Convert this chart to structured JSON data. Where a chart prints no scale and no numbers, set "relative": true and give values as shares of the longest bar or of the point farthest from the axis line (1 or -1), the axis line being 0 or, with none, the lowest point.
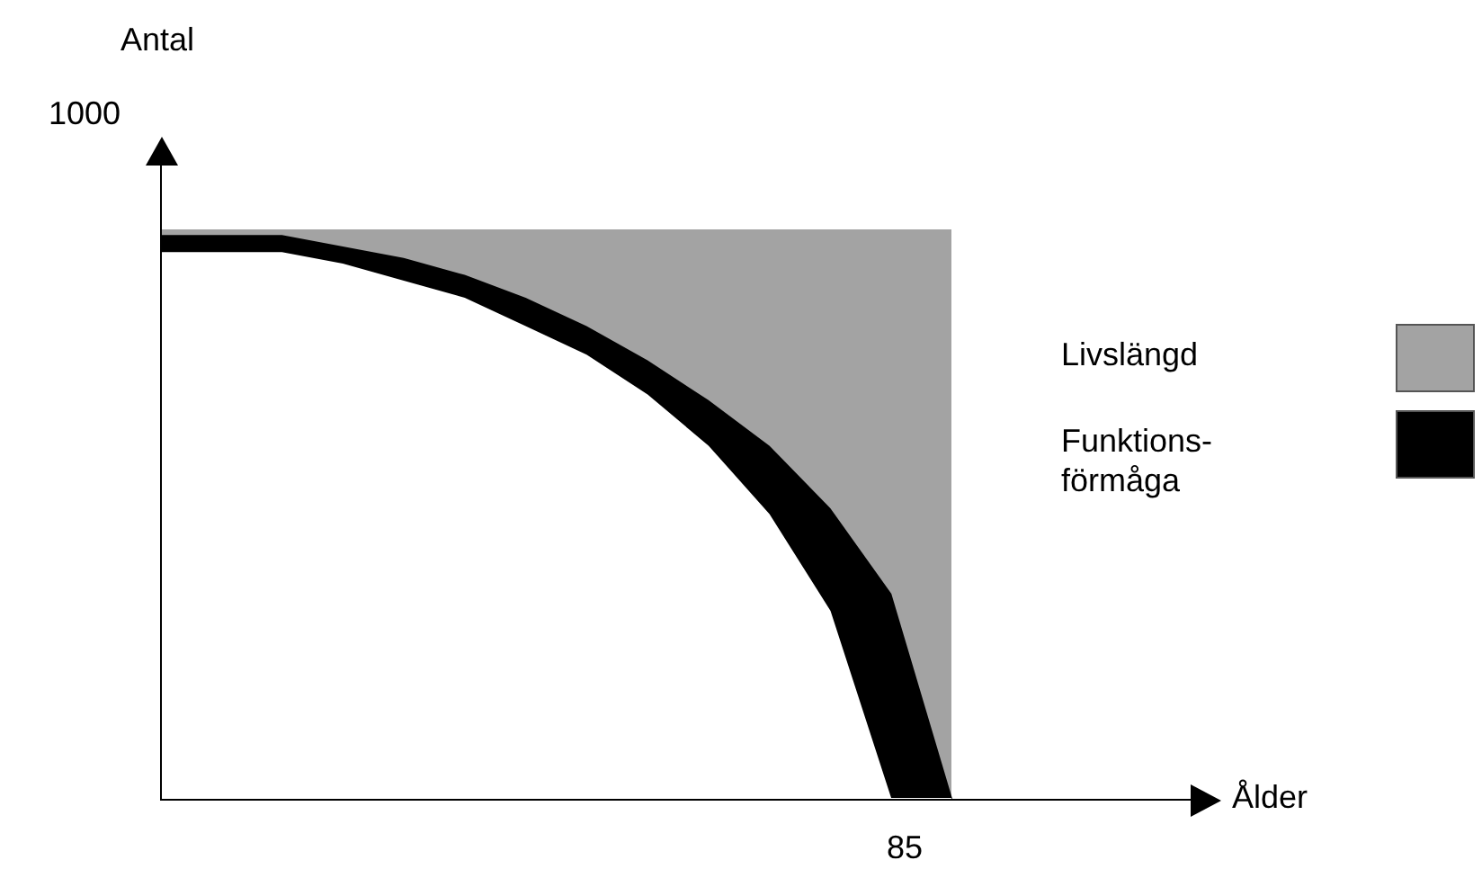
{
  "chart_data": {
    "type": "area",
    "stacked": true,
    "relative": true,
    "legend": "right",
    "categories": [
      null,
      null,
      null,
      null,
      null,
      null,
      null,
      null,
      null,
      null,
      null,
      null,
      null,
      null
    ],
    "series": [
      {
        "color": "#ffffff",
        "values": [
          0.96,
          0.96,
          0.96,
          0.94,
          0.91,
          0.88,
          0.83,
          0.78,
          0.71,
          0.62,
          0.5,
          0.33,
          0,
          0
        ]
      },
      {
        "name": "Funktions-förmåga",
        "color": "#000000",
        "values": [
          0.03,
          0.03,
          0.03,
          0.03,
          0.04,
          0.04,
          0.05,
          0.05,
          0.06,
          0.08,
          0.12,
          0.18,
          0.36,
          0
        ]
      },
      {
        "name": "Livslängd",
        "color": "#a3a3a3",
        "values": [
          0.01,
          0.01,
          0.01,
          0.03,
          0.05,
          0.08,
          0.12,
          0.17,
          0.23,
          0.3,
          0.38,
          0.49,
          0.64,
          1
        ]
      }
    ],
    "annotations": [
      "Antal",
      "1000",
      "Ålder",
      "85"
    ]
  }
}
